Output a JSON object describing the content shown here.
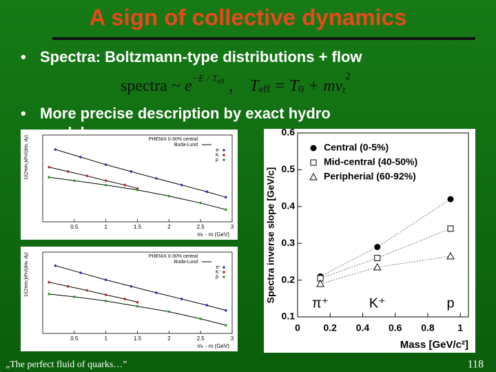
{
  "slide": {
    "title": "A sign of collective dynamics",
    "bullets": [
      "Spectra: Boltzmann-type distributions + flow",
      "More precise description by exact hydro",
      "models"
    ],
    "formula": [
      "spectra ~ ",
      "e",
      "−E / T",
      "eff",
      " ,",
      "T",
      "eff",
      " = T",
      "0",
      " + mv",
      "t",
      "2"
    ],
    "footer": "„The perfect fluid of quarks…”",
    "page_number": "118"
  },
  "spectra_panels": [
    {
      "title": "PHENIX 0-30% central",
      "fit_label": "Buda-Lund",
      "xlabel": "mₜ - m (GeV)",
      "ylabel": "1/(2πmₜ)d²n/(dmₜ dy)",
      "xlim": [
        0,
        3
      ],
      "ylim": [
        0.01,
        10000
      ],
      "log": true,
      "xticks": [
        0.5,
        1,
        1.5,
        2,
        2.5,
        3
      ],
      "series": [
        {
          "name": "π",
          "color": "#2030c0",
          "x": [
            0.2,
            0.6,
            1.0,
            1.4,
            1.8,
            2.2,
            2.6,
            2.9
          ],
          "values": [
            1000,
            300,
            90,
            30,
            10,
            3.5,
            1.2,
            0.5
          ]
        },
        {
          "name": "K",
          "color": "#c02020",
          "x": [
            0.1,
            0.4,
            0.7,
            1.0,
            1.3,
            1.5
          ],
          "values": [
            60,
            30,
            15,
            7,
            3.5,
            2
          ]
        },
        {
          "name": "p",
          "color": "#20a020",
          "x": [
            0.1,
            0.5,
            1.0,
            1.5,
            2.0,
            2.5,
            2.9
          ],
          "values": [
            12,
            7,
            3.5,
            1.6,
            0.6,
            0.2,
            0.07
          ]
        }
      ]
    },
    {
      "title": "PHENIX 0-30% central",
      "fit_label": "Buda-Lund",
      "xlabel": "mₜ - m (GeV)",
      "ylabel": "1/(2πmₜ)d²n/(dmₜ dy)",
      "xlim": [
        0,
        3
      ],
      "ylim": [
        0.01,
        10000
      ],
      "log": true,
      "xticks": [
        0.5,
        1,
        1.5,
        2,
        2.5,
        3
      ],
      "series": [
        {
          "name": "π⁻",
          "color": "#2030c0",
          "x": [
            0.2,
            0.6,
            1.0,
            1.4,
            1.8,
            2.2,
            2.6,
            2.9
          ],
          "values": [
            1000,
            300,
            90,
            30,
            10,
            3.5,
            1.2,
            0.5
          ]
        },
        {
          "name": "K⁻",
          "color": "#c02020",
          "x": [
            0.1,
            0.4,
            0.7,
            1.0,
            1.3,
            1.5
          ],
          "values": [
            60,
            30,
            15,
            7,
            3.5,
            2
          ]
        },
        {
          "name": "p̄",
          "color": "#20a020",
          "x": [
            0.1,
            0.5,
            1.0,
            1.5,
            2.0,
            2.5,
            2.9
          ],
          "values": [
            8,
            5,
            2.5,
            1,
            0.4,
            0.12,
            0.04
          ]
        }
      ]
    }
  ],
  "chart_data": {
    "type": "scatter",
    "xlabel": "Mass [GeV/c²]",
    "ylabel": "Spectra inverse slope [GeV/c]",
    "x": [
      0.14,
      0.49,
      0.94
    ],
    "xlim": [
      0,
      1.05
    ],
    "ylim": [
      0.1,
      0.6
    ],
    "xticks": [
      0,
      0.2,
      0.4,
      0.6,
      0.8,
      1
    ],
    "yticks": [
      0.1,
      0.2,
      0.3,
      0.4,
      0.5,
      0.6
    ],
    "annotations": [
      "π⁺",
      "K⁺",
      "p"
    ],
    "series": [
      {
        "name": "Central (0-5%)",
        "marker": "circle",
        "values": [
          0.21,
          0.29,
          0.42
        ]
      },
      {
        "name": "Mid-central (40-50%)",
        "marker": "square",
        "values": [
          0.205,
          0.26,
          0.34
        ]
      },
      {
        "name": "Peripherial (60-92%)",
        "marker": "triangle",
        "values": [
          0.19,
          0.235,
          0.265
        ]
      }
    ]
  }
}
